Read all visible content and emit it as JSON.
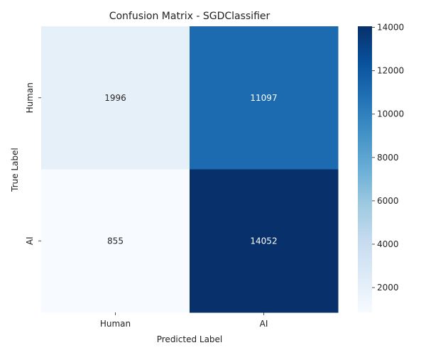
{
  "chart_data": {
    "type": "heatmap",
    "title": "Confusion Matrix - SGDClassifier",
    "xlabel": "Predicted Label",
    "ylabel": "True Label",
    "x_categories": [
      "Human",
      "AI"
    ],
    "y_categories": [
      "Human",
      "AI"
    ],
    "values": [
      [
        1996,
        11097
      ],
      [
        855,
        14052
      ]
    ],
    "colormap": "Blues",
    "colorbar": {
      "range": [
        855,
        14052
      ],
      "ticks": [
        2000,
        4000,
        6000,
        8000,
        10000,
        12000,
        14000
      ]
    },
    "colors": {
      "low": "#f7fbff",
      "high": "#08306b",
      "text_light": "#ffffff",
      "text_dark": "#262626"
    }
  }
}
